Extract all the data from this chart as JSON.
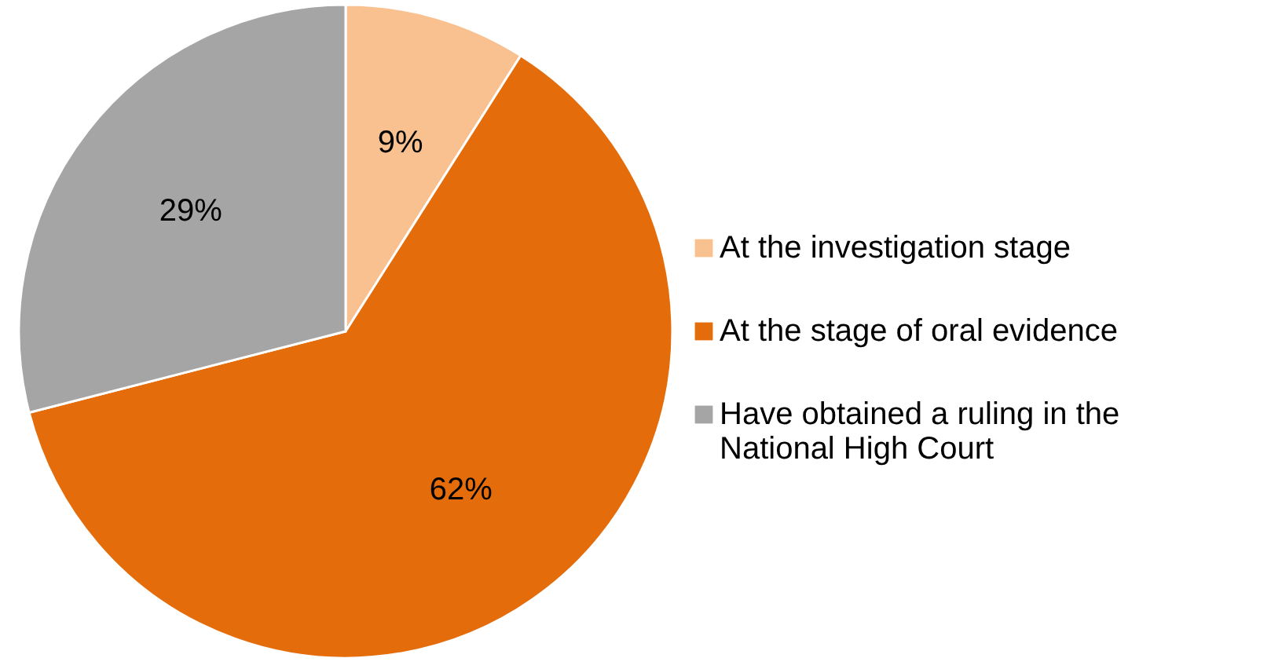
{
  "chart_data": {
    "type": "pie",
    "categories": [
      "At the investigation stage",
      "At the stage of oral evidence",
      "Have obtained a ruling in the\nNational High Court"
    ],
    "values": [
      9,
      62,
      29
    ],
    "colors": [
      "#f9c090",
      "#e46c0a",
      "#a5a5a5"
    ],
    "value_labels": [
      "9%",
      "62%",
      "29%"
    ],
    "legend": "right"
  }
}
